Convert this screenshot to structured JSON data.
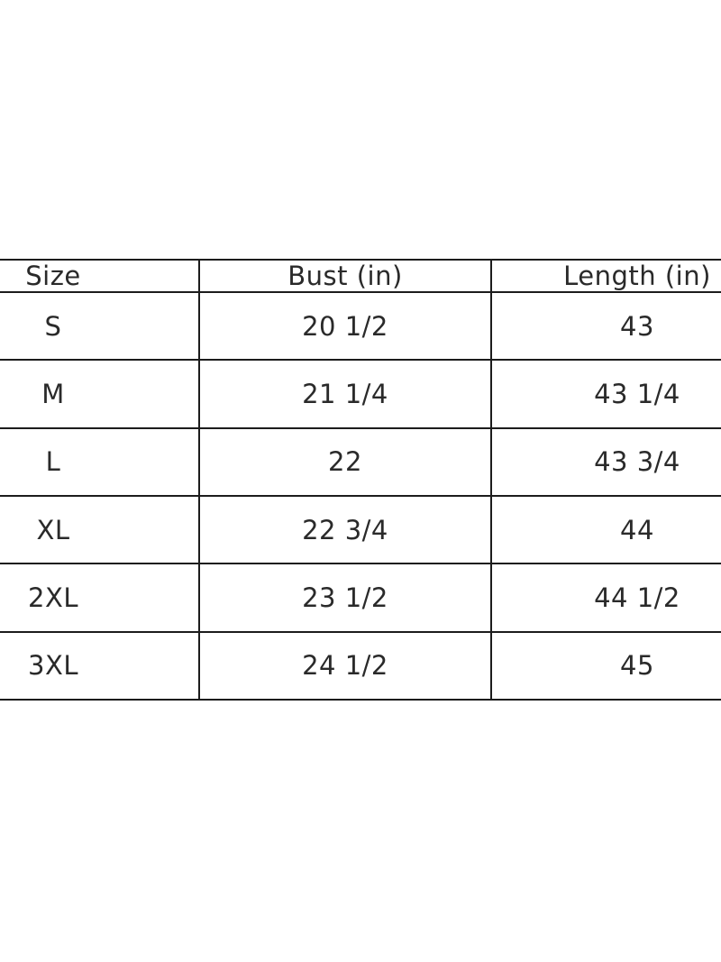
{
  "page": {
    "background": "#ffffff"
  },
  "size_chart": {
    "headers": [
      "Size",
      "Bust (in)",
      "Length (in)"
    ],
    "rows": [
      [
        "S",
        "20 1/2",
        "43"
      ],
      [
        "M",
        "21 1/4",
        "43 1/4"
      ],
      [
        "L",
        "22",
        "43 3/4"
      ],
      [
        "XL",
        "22 3/4",
        "44"
      ],
      [
        "2XL",
        "23 1/2",
        "44 1/2"
      ],
      [
        "3XL",
        "24 1/2",
        "45"
      ]
    ],
    "colors": {
      "border": "#1c1c1c",
      "text": "#2a2a2a",
      "background": "#ffffff"
    }
  },
  "chart_data": {
    "type": "table",
    "columns": [
      "Size",
      "Bust (in)",
      "Length (in)"
    ],
    "rows": [
      {
        "size": "S",
        "bust_in": "20 1/2",
        "length_in": "43"
      },
      {
        "size": "M",
        "bust_in": "21 1/4",
        "length_in": "43 1/4"
      },
      {
        "size": "L",
        "bust_in": "22",
        "length_in": "43 3/4"
      },
      {
        "size": "XL",
        "bust_in": "22 3/4",
        "length_in": "44"
      },
      {
        "size": "2XL",
        "bust_in": "23 1/2",
        "length_in": "44 1/2"
      },
      {
        "size": "3XL",
        "bust_in": "24 1/2",
        "length_in": "45"
      }
    ]
  }
}
